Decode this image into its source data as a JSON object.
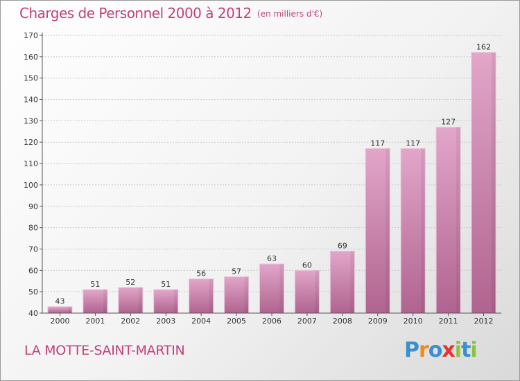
{
  "header": {
    "title": "Charges de Personnel 2000 à 2012",
    "subtitle": "(en milliers d'€)"
  },
  "footer": {
    "commune": "LA MOTTE-SAINT-MARTIN",
    "logo_text": "Proxiti",
    "logo_colors": [
      "#3a8fd1",
      "#f08a1c",
      "#3a8fd1",
      "#e8322c",
      "#8bc43f",
      "#3a8fd1",
      "#8bc43f"
    ]
  },
  "colors": {
    "bar_top": "#e2a6c9",
    "bar_bottom": "#b0648f",
    "accent": "#c2417a"
  },
  "chart_data": {
    "type": "bar",
    "categories": [
      "2000",
      "2001",
      "2002",
      "2003",
      "2004",
      "2005",
      "2006",
      "2007",
      "2008",
      "2009",
      "2010",
      "2011",
      "2012"
    ],
    "values": [
      43,
      51,
      52,
      51,
      56,
      57,
      63,
      60,
      69,
      117,
      117,
      127,
      162
    ],
    "title": "Charges de Personnel 2000 à 2012",
    "subtitle": "(en milliers d'€)",
    "ylim": [
      40,
      170
    ],
    "yticks": [
      40,
      50,
      60,
      70,
      80,
      90,
      100,
      110,
      120,
      130,
      140,
      150,
      160,
      170
    ],
    "grid": true,
    "data_labels": true
  }
}
